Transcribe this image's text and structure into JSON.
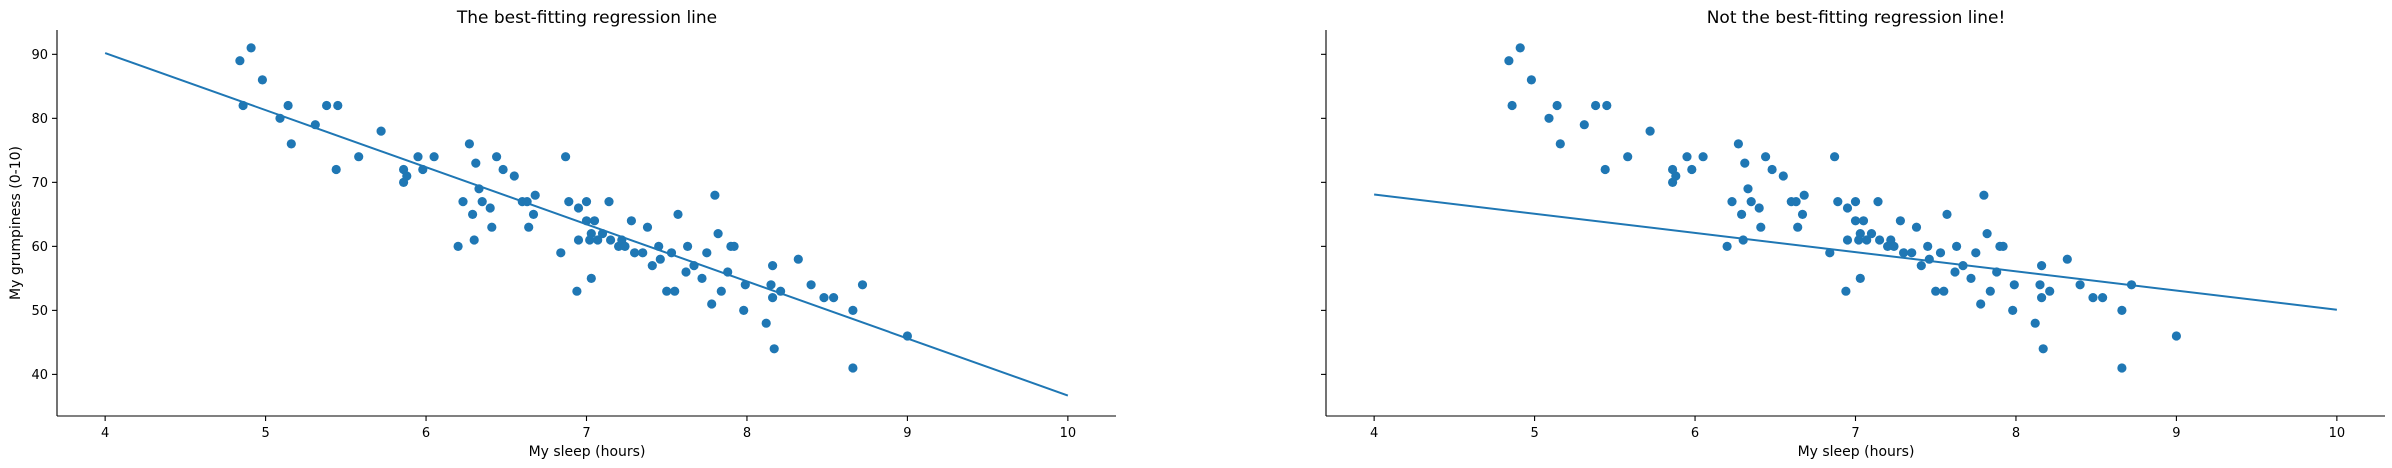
{
  "chart_data": [
    {
      "type": "scatter",
      "title": "The best-fitting regression line",
      "xlabel": "My sleep (hours)",
      "ylabel": "My grumpiness (0-10)",
      "xlim": [
        3.7,
        10.3
      ],
      "ylim": [
        33.5,
        93.8
      ],
      "xticks": [
        4,
        5,
        6,
        7,
        8,
        9,
        10
      ],
      "yticks": [
        40,
        50,
        60,
        70,
        80,
        90
      ],
      "color": "#1f77b4",
      "points_ref": "points",
      "line": {
        "x": [
          4,
          10
        ],
        "y": [
          90.2,
          36.7
        ]
      }
    },
    {
      "type": "scatter",
      "title": "Not the best-fitting regression line!",
      "xlabel": "My sleep (hours)",
      "ylabel": "",
      "xlim": [
        3.7,
        10.3
      ],
      "ylim": [
        33.5,
        93.8
      ],
      "xticks": [
        4,
        5,
        6,
        7,
        8,
        9,
        10
      ],
      "yticks": [
        40,
        50,
        60,
        70,
        80,
        90
      ],
      "color": "#1f77b4",
      "points_ref": "points",
      "line": {
        "x": [
          4,
          10
        ],
        "y": [
          68.1,
          50.1
        ]
      }
    }
  ],
  "points": [
    [
      4.84,
      89
    ],
    [
      4.91,
      91
    ],
    [
      4.86,
      82
    ],
    [
      4.98,
      86
    ],
    [
      5.09,
      80
    ],
    [
      5.14,
      82
    ],
    [
      5.16,
      76
    ],
    [
      5.31,
      79
    ],
    [
      5.38,
      82
    ],
    [
      5.45,
      82
    ],
    [
      5.44,
      72
    ],
    [
      5.58,
      74
    ],
    [
      5.72,
      78
    ],
    [
      5.86,
      72
    ],
    [
      5.86,
      70
    ],
    [
      5.88,
      71
    ],
    [
      5.95,
      74
    ],
    [
      5.98,
      72
    ],
    [
      6.05,
      74
    ],
    [
      6.2,
      60
    ],
    [
      6.23,
      67
    ],
    [
      6.27,
      76
    ],
    [
      6.29,
      65
    ],
    [
      6.3,
      61
    ],
    [
      6.31,
      73
    ],
    [
      6.33,
      69
    ],
    [
      6.35,
      67
    ],
    [
      6.4,
      66
    ],
    [
      6.41,
      63
    ],
    [
      6.44,
      74
    ],
    [
      6.48,
      72
    ],
    [
      6.55,
      71
    ],
    [
      6.6,
      67
    ],
    [
      6.63,
      67
    ],
    [
      6.64,
      63
    ],
    [
      6.67,
      65
    ],
    [
      6.68,
      68
    ],
    [
      6.84,
      59
    ],
    [
      6.87,
      74
    ],
    [
      6.89,
      67
    ],
    [
      6.94,
      53
    ],
    [
      6.95,
      61
    ],
    [
      6.95,
      66
    ],
    [
      7.0,
      67
    ],
    [
      7.0,
      64
    ],
    [
      7.02,
      61
    ],
    [
      7.03,
      55
    ],
    [
      7.03,
      62
    ],
    [
      7.05,
      64
    ],
    [
      7.07,
      61
    ],
    [
      7.1,
      62
    ],
    [
      7.14,
      67
    ],
    [
      7.15,
      61
    ],
    [
      7.2,
      60
    ],
    [
      7.22,
      61
    ],
    [
      7.24,
      60
    ],
    [
      7.28,
      64
    ],
    [
      7.3,
      59
    ],
    [
      7.35,
      59
    ],
    [
      7.38,
      63
    ],
    [
      7.41,
      57
    ],
    [
      7.45,
      60
    ],
    [
      7.46,
      58
    ],
    [
      7.5,
      53
    ],
    [
      7.53,
      59
    ],
    [
      7.55,
      53
    ],
    [
      7.57,
      65
    ],
    [
      7.62,
      56
    ],
    [
      7.63,
      60
    ],
    [
      7.67,
      57
    ],
    [
      7.72,
      55
    ],
    [
      7.75,
      59
    ],
    [
      7.78,
      51
    ],
    [
      7.8,
      68
    ],
    [
      7.82,
      62
    ],
    [
      7.84,
      53
    ],
    [
      7.88,
      56
    ],
    [
      7.9,
      60
    ],
    [
      7.92,
      60
    ],
    [
      7.98,
      50
    ],
    [
      7.99,
      54
    ],
    [
      8.12,
      48
    ],
    [
      8.15,
      54
    ],
    [
      8.16,
      52
    ],
    [
      8.16,
      57
    ],
    [
      8.17,
      44
    ],
    [
      8.21,
      53
    ],
    [
      8.32,
      58
    ],
    [
      8.4,
      54
    ],
    [
      8.48,
      52
    ],
    [
      8.54,
      52
    ],
    [
      8.66,
      50
    ],
    [
      8.72,
      54
    ],
    [
      8.66,
      41
    ],
    [
      9.0,
      46
    ]
  ]
}
